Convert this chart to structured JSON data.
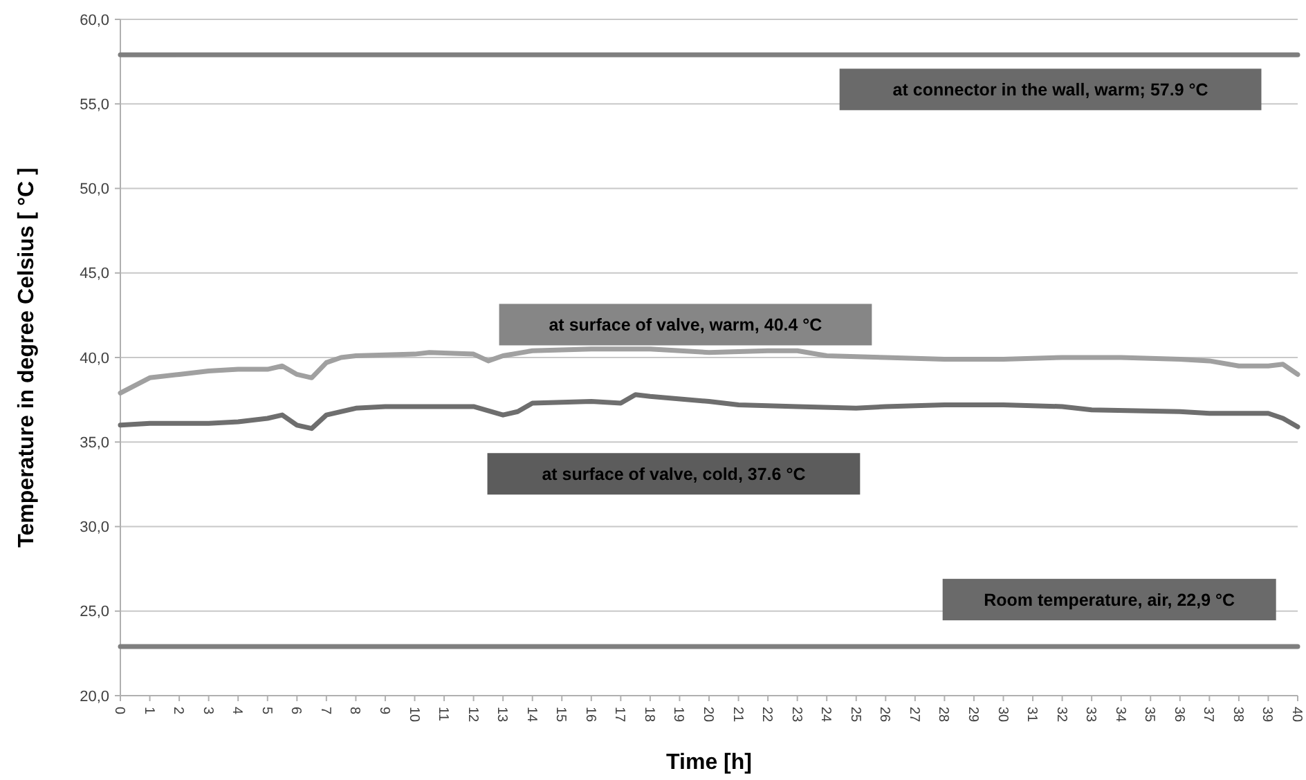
{
  "chart_data": {
    "type": "line",
    "xlabel": "Time  [h]",
    "ylabel": "Temperature in degree Celsius [ °C ]",
    "xlim": [
      0,
      40
    ],
    "xticks": [
      0,
      1,
      2,
      3,
      4,
      5,
      6,
      7,
      8,
      9,
      10,
      11,
      12,
      13,
      14,
      15,
      16,
      17,
      18,
      19,
      20,
      21,
      22,
      23,
      24,
      25,
      26,
      27,
      28,
      29,
      30,
      31,
      32,
      33,
      34,
      35,
      36,
      37,
      38,
      39,
      40
    ],
    "ylim": [
      20,
      60
    ],
    "yticks": [
      {
        "value": 20,
        "label": "20,0"
      },
      {
        "value": 25,
        "label": "25,0"
      },
      {
        "value": 30,
        "label": "30,0"
      },
      {
        "value": 35,
        "label": "35,0"
      },
      {
        "value": 40,
        "label": "40,0"
      },
      {
        "value": 45,
        "label": "45,0"
      },
      {
        "value": 50,
        "label": "50,0"
      },
      {
        "value": 55,
        "label": "55,0"
      },
      {
        "value": 60,
        "label": "60,0"
      }
    ],
    "grid": "y",
    "marker": "none",
    "line_style": "solid",
    "series": [
      {
        "color": "#7f7f7f",
        "x": [
          0,
          40
        ],
        "values": [
          57.9,
          57.9
        ]
      },
      {
        "color": "#a0a0a0",
        "x": [
          0,
          1,
          2,
          3,
          4,
          5,
          5.5,
          6,
          6.5,
          7,
          7.5,
          8,
          10,
          10.5,
          12,
          12.5,
          13,
          14,
          16,
          18,
          20,
          22,
          23,
          24,
          26,
          28,
          30,
          32,
          34,
          36,
          37,
          38,
          39,
          39.5,
          40
        ],
        "values": [
          37.9,
          38.8,
          39.0,
          39.2,
          39.3,
          39.3,
          39.5,
          39.0,
          38.8,
          39.7,
          40.0,
          40.1,
          40.2,
          40.3,
          40.2,
          39.8,
          40.1,
          40.4,
          40.5,
          40.5,
          40.3,
          40.4,
          40.4,
          40.1,
          40.0,
          39.9,
          39.9,
          40.0,
          40.0,
          39.9,
          39.8,
          39.5,
          39.5,
          39.6,
          39.0
        ]
      },
      {
        "color": "#6e6e6e",
        "x": [
          0,
          1,
          2,
          3,
          4,
          5,
          5.5,
          6,
          6.5,
          7,
          8,
          9,
          12,
          13,
          13.5,
          14,
          16,
          17,
          17.5,
          18,
          20,
          21,
          23,
          25,
          26,
          28,
          30,
          32,
          33,
          36,
          37,
          39,
          39.5,
          40
        ],
        "values": [
          36.0,
          36.1,
          36.1,
          36.1,
          36.2,
          36.4,
          36.6,
          36.0,
          35.8,
          36.6,
          37.0,
          37.1,
          37.1,
          36.6,
          36.8,
          37.3,
          37.4,
          37.3,
          37.8,
          37.7,
          37.4,
          37.2,
          37.1,
          37.0,
          37.1,
          37.2,
          37.2,
          37.1,
          36.9,
          36.8,
          36.7,
          36.7,
          36.4,
          35.9
        ]
      },
      {
        "color": "#7f7f7f",
        "x": [
          0,
          40
        ],
        "values": [
          22.9,
          22.9
        ]
      }
    ],
    "annotations": [
      "at connector in the wall, warm; 57.9 °C",
      "at surface of valve, warm, 40.4 °C",
      "at surface of valve, cold, 37.6 °C",
      "Room temperature, air, 22,9 °C"
    ]
  }
}
